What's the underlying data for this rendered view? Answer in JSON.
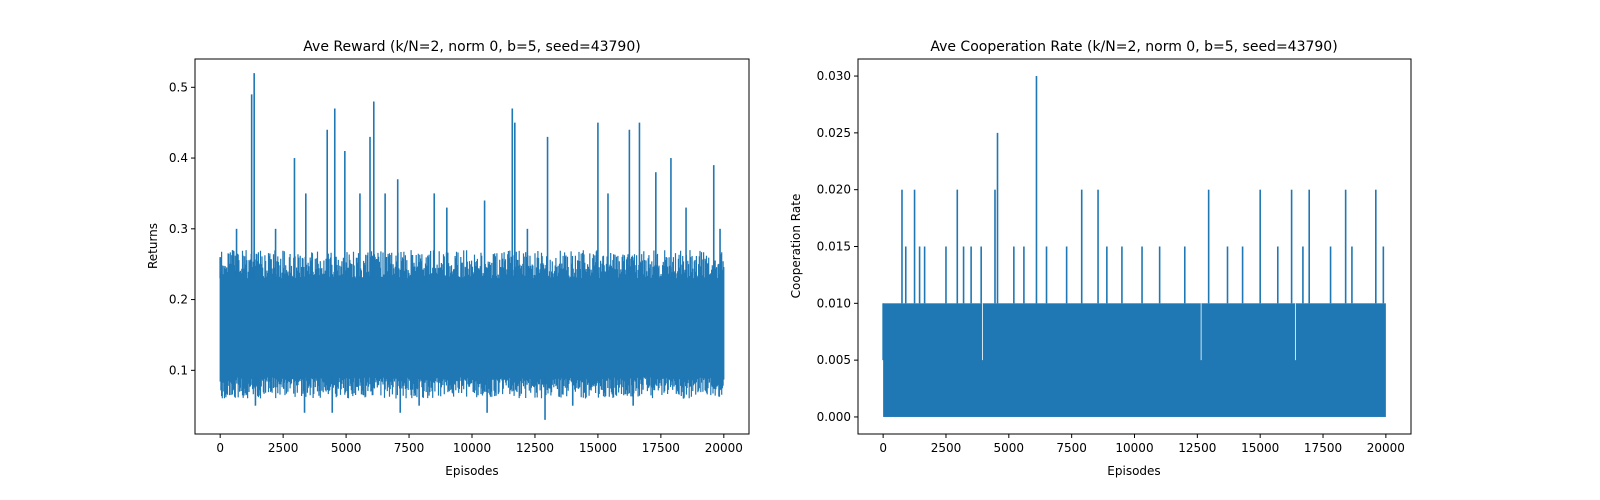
{
  "chart_data": [
    {
      "type": "line",
      "title": "Ave Reward (k/N=2, norm 0, b=5, seed=43790)",
      "xlabel": "Episodes",
      "ylabel": "Returns",
      "xlim": [
        -1000,
        21000
      ],
      "ylim": [
        0.01,
        0.54
      ],
      "xticks": [
        0,
        2500,
        5000,
        7500,
        10000,
        12500,
        15000,
        17500,
        20000
      ],
      "xtick_labels": [
        "0",
        "2500",
        "5000",
        "7500",
        "10000",
        "12500",
        "15000",
        "17500",
        "20000"
      ],
      "yticks": [
        0.1,
        0.2,
        0.3,
        0.4,
        0.5
      ],
      "ytick_labels": [
        "0.1",
        "0.2",
        "0.3",
        "0.4",
        "0.5"
      ],
      "color": "#1f77b4",
      "grid": false,
      "series": [
        {
          "x": [
            0,
            20000
          ],
          "band_low": 0.09,
          "band_high": 0.23,
          "noise_low": 0.06,
          "noise_high": 0.27,
          "spikes": [
            {
              "x": 0,
              "y": 0.26
            },
            {
              "x": 650,
              "y": 0.3
            },
            {
              "x": 1250,
              "y": 0.49
            },
            {
              "x": 1350,
              "y": 0.52
            },
            {
              "x": 2200,
              "y": 0.3
            },
            {
              "x": 2950,
              "y": 0.4
            },
            {
              "x": 3400,
              "y": 0.35
            },
            {
              "x": 4250,
              "y": 0.44
            },
            {
              "x": 4550,
              "y": 0.47
            },
            {
              "x": 4950,
              "y": 0.41
            },
            {
              "x": 5550,
              "y": 0.35
            },
            {
              "x": 5950,
              "y": 0.43
            },
            {
              "x": 6100,
              "y": 0.48
            },
            {
              "x": 6550,
              "y": 0.35
            },
            {
              "x": 7050,
              "y": 0.37
            },
            {
              "x": 8500,
              "y": 0.35
            },
            {
              "x": 9000,
              "y": 0.33
            },
            {
              "x": 10500,
              "y": 0.34
            },
            {
              "x": 11600,
              "y": 0.47
            },
            {
              "x": 11700,
              "y": 0.45
            },
            {
              "x": 12200,
              "y": 0.3
            },
            {
              "x": 13000,
              "y": 0.43
            },
            {
              "x": 15000,
              "y": 0.45
            },
            {
              "x": 15400,
              "y": 0.35
            },
            {
              "x": 16250,
              "y": 0.44
            },
            {
              "x": 16650,
              "y": 0.45
            },
            {
              "x": 17300,
              "y": 0.38
            },
            {
              "x": 17900,
              "y": 0.4
            },
            {
              "x": 18500,
              "y": 0.33
            },
            {
              "x": 19600,
              "y": 0.39
            },
            {
              "x": 19850,
              "y": 0.3
            }
          ],
          "dips": [
            {
              "x": 1400,
              "y": 0.05
            },
            {
              "x": 3350,
              "y": 0.04
            },
            {
              "x": 4450,
              "y": 0.04
            },
            {
              "x": 7150,
              "y": 0.04
            },
            {
              "x": 7900,
              "y": 0.05
            },
            {
              "x": 10600,
              "y": 0.04
            },
            {
              "x": 12900,
              "y": 0.03
            },
            {
              "x": 14000,
              "y": 0.05
            },
            {
              "x": 16400,
              "y": 0.05
            },
            {
              "x": 18400,
              "y": 0.06
            }
          ]
        }
      ]
    },
    {
      "type": "line",
      "title": "Ave Cooperation Rate (k/N=2, norm 0, b=5, seed=43790)",
      "xlabel": "Episodes",
      "ylabel": "Cooperation Rate",
      "xlim": [
        -1000,
        21000
      ],
      "ylim": [
        -0.0015,
        0.0315
      ],
      "xticks": [
        0,
        2500,
        5000,
        7500,
        10000,
        12500,
        15000,
        17500,
        20000
      ],
      "xtick_labels": [
        "0",
        "2500",
        "5000",
        "7500",
        "10000",
        "12500",
        "15000",
        "17500",
        "20000"
      ],
      "yticks": [
        0.0,
        0.005,
        0.01,
        0.015,
        0.02,
        0.025,
        0.03
      ],
      "ytick_labels": [
        "0.000",
        "0.005",
        "0.010",
        "0.015",
        "0.020",
        "0.025",
        "0.030"
      ],
      "color": "#1f77b4",
      "grid": false,
      "series": [
        {
          "x": [
            0,
            20000
          ],
          "band_low": 0.0,
          "band_high": 0.01,
          "spikes": [
            {
              "x": 0,
              "y": 0.005
            },
            {
              "x": 750,
              "y": 0.02
            },
            {
              "x": 900,
              "y": 0.015
            },
            {
              "x": 1250,
              "y": 0.02
            },
            {
              "x": 1450,
              "y": 0.015
            },
            {
              "x": 1650,
              "y": 0.015
            },
            {
              "x": 2500,
              "y": 0.015
            },
            {
              "x": 2950,
              "y": 0.02
            },
            {
              "x": 3200,
              "y": 0.015
            },
            {
              "x": 3500,
              "y": 0.015
            },
            {
              "x": 3900,
              "y": 0.015
            },
            {
              "x": 4450,
              "y": 0.02
            },
            {
              "x": 4550,
              "y": 0.025
            },
            {
              "x": 5200,
              "y": 0.015
            },
            {
              "x": 5600,
              "y": 0.015
            },
            {
              "x": 6100,
              "y": 0.03
            },
            {
              "x": 6500,
              "y": 0.015
            },
            {
              "x": 7300,
              "y": 0.015
            },
            {
              "x": 7900,
              "y": 0.02
            },
            {
              "x": 8550,
              "y": 0.02
            },
            {
              "x": 8900,
              "y": 0.015
            },
            {
              "x": 9500,
              "y": 0.015
            },
            {
              "x": 10300,
              "y": 0.015
            },
            {
              "x": 11000,
              "y": 0.015
            },
            {
              "x": 12000,
              "y": 0.015
            },
            {
              "x": 12950,
              "y": 0.02
            },
            {
              "x": 13700,
              "y": 0.015
            },
            {
              "x": 14300,
              "y": 0.015
            },
            {
              "x": 15000,
              "y": 0.02
            },
            {
              "x": 15700,
              "y": 0.015
            },
            {
              "x": 16250,
              "y": 0.02
            },
            {
              "x": 16700,
              "y": 0.015
            },
            {
              "x": 16950,
              "y": 0.02
            },
            {
              "x": 17800,
              "y": 0.015
            },
            {
              "x": 18400,
              "y": 0.02
            },
            {
              "x": 18650,
              "y": 0.015
            },
            {
              "x": 19600,
              "y": 0.02
            },
            {
              "x": 19900,
              "y": 0.015
            }
          ],
          "gaps": [
            {
              "x": 3950,
              "y": 0.005
            },
            {
              "x": 12650,
              "y": 0.005
            },
            {
              "x": 16400,
              "y": 0.005
            }
          ]
        }
      ]
    }
  ]
}
